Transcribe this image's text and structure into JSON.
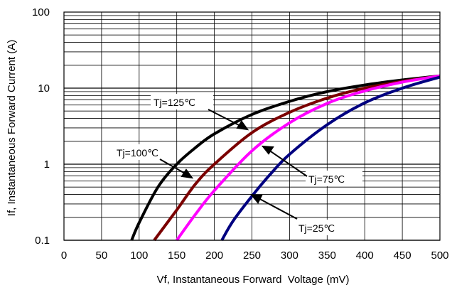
{
  "chart_data": {
    "type": "line",
    "xlabel": "Vf, Instantaneous Forward  Voltage (mV)",
    "ylabel": "If, Instantaneous Forward Current (A)",
    "xlim": [
      0,
      500
    ],
    "ylim": [
      0.1,
      100
    ],
    "yscale": "log",
    "grid": true,
    "x_ticks": [
      "0",
      "50",
      "100",
      "150",
      "200",
      "250",
      "300",
      "350",
      "400",
      "450",
      "500"
    ],
    "y_ticks": [
      "0.1",
      "1",
      "10",
      "100"
    ],
    "series": [
      {
        "name": "Tj=125℃",
        "color": "#000000",
        "x": [
          90,
          100,
          125,
          150,
          175,
          200,
          250,
          300,
          350,
          400,
          450,
          500
        ],
        "y": [
          0.1,
          0.17,
          0.5,
          1.0,
          1.65,
          2.5,
          4.5,
          6.7,
          9.0,
          11.0,
          12.8,
          14.5
        ]
      },
      {
        "name": "Tj=100℃",
        "color": "#7b0000",
        "x": [
          120,
          150,
          175,
          200,
          250,
          300,
          350,
          400,
          450,
          500
        ],
        "y": [
          0.1,
          0.25,
          0.55,
          1.0,
          2.6,
          4.8,
          7.4,
          10.0,
          12.3,
          14.5
        ]
      },
      {
        "name": "Tj=75℃",
        "color": "#ff00ff",
        "x": [
          150,
          175,
          200,
          250,
          300,
          350,
          400,
          450,
          500
        ],
        "y": [
          0.1,
          0.22,
          0.45,
          1.5,
          3.5,
          6.3,
          9.2,
          12.0,
          14.5
        ]
      },
      {
        "name": "Tj=25℃",
        "color": "#000080",
        "x": [
          210,
          225,
          250,
          275,
          300,
          350,
          400,
          450,
          500
        ],
        "y": [
          0.1,
          0.18,
          0.38,
          0.75,
          1.35,
          3.3,
          6.4,
          10.0,
          14.0
        ]
      }
    ],
    "annotations": [
      "Tj=125℃",
      "Tj=100℃",
      "Tj=75℃",
      "Tj=25℃"
    ]
  }
}
